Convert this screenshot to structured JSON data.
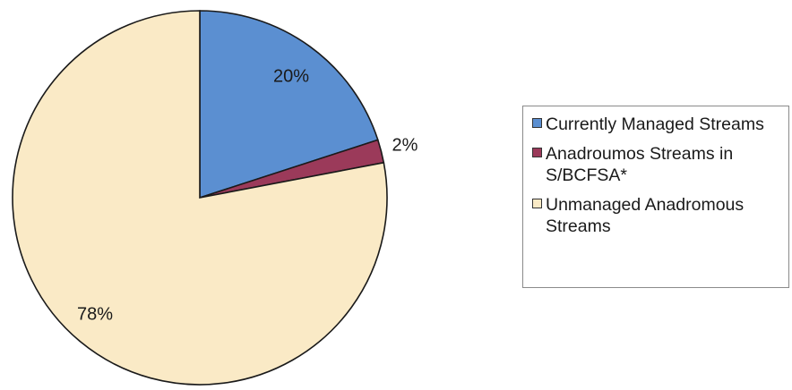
{
  "chart_data": {
    "type": "pie",
    "title": "",
    "start": "12 o'clock, clockwise",
    "slices": [
      {
        "label": "Currently Managed Streams",
        "value": 20,
        "value_label": "20%",
        "color": "#5b8fd1"
      },
      {
        "label": "Anadroumos Streams in S/BCFSA*",
        "value": 2,
        "value_label": "2%",
        "color": "#9b3a5a"
      },
      {
        "label": "Unmanaged Anadromous Streams",
        "value": 78,
        "value_label": "78%",
        "color": "#faeac6"
      }
    ],
    "legend_position": "right"
  }
}
